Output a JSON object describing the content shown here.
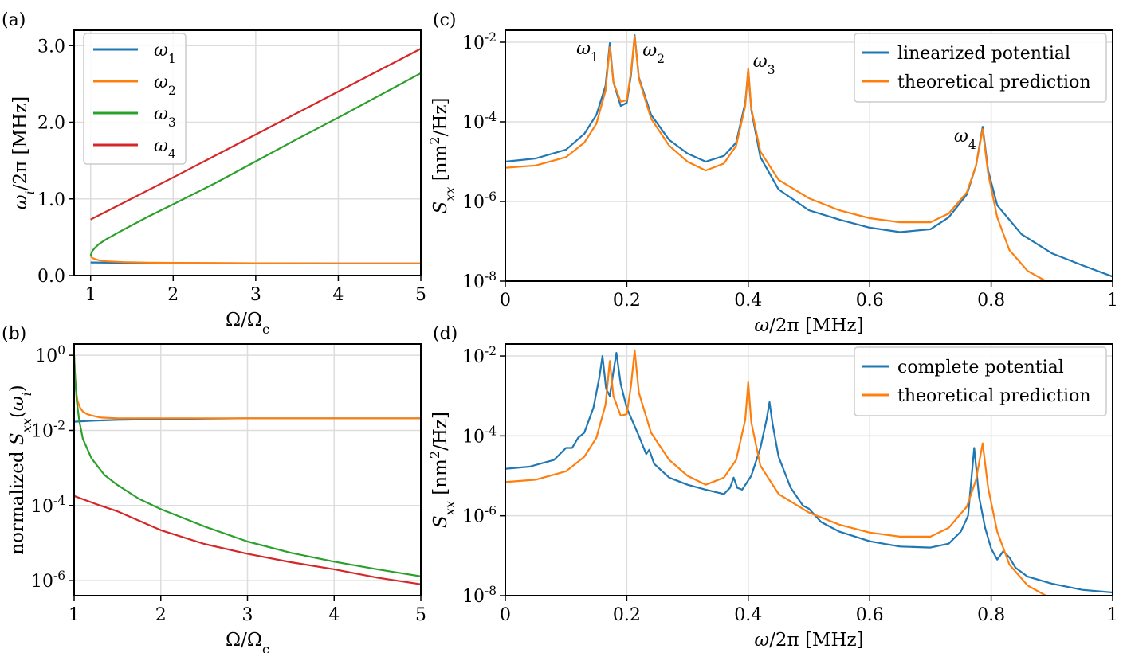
{
  "colors": {
    "blue": "#1f77b4",
    "orange": "#ff7f0e",
    "green": "#2ca02c",
    "red": "#d62728",
    "grid": "#dddddd"
  },
  "chart_data": [
    {
      "panel_label": "(a)",
      "type": "line",
      "xlabel": "Ω/Ω",
      "xlabel_sub": "c",
      "ylabel": "ω",
      "ylabel_sub": "i",
      "ylabel_rest": "/2π [MHz]",
      "xlim": [
        0.8,
        5
      ],
      "ylim": [
        0,
        3.2
      ],
      "xticks": [
        1,
        2,
        3,
        4,
        5
      ],
      "yticks": [
        0.0,
        1.0,
        2.0,
        3.0
      ],
      "xtick_labels": [
        "1",
        "2",
        "3",
        "4",
        "5"
      ],
      "ytick_labels": [
        "0.0",
        "1.0",
        "2.0",
        "3.0"
      ],
      "grid": true,
      "legend": "top-left",
      "series": [
        {
          "name": "ω",
          "name_sub": "1",
          "color": "blue",
          "x": [
            1,
            1.5,
            2,
            3,
            4,
            5
          ],
          "y": [
            0.17,
            0.165,
            0.162,
            0.16,
            0.158,
            0.157
          ]
        },
        {
          "name": "ω",
          "name_sub": "2",
          "color": "orange",
          "x": [
            1,
            1.02,
            1.05,
            1.1,
            1.2,
            1.4,
            1.7,
            2,
            3,
            4,
            5
          ],
          "y": [
            0.26,
            0.23,
            0.215,
            0.2,
            0.185,
            0.175,
            0.168,
            0.165,
            0.16,
            0.158,
            0.157
          ]
        },
        {
          "name": "ω",
          "name_sub": "3",
          "color": "green",
          "x": [
            1,
            1.02,
            1.05,
            1.1,
            1.2,
            1.4,
            1.7,
            2,
            2.5,
            3,
            3.5,
            4,
            4.5,
            5
          ],
          "y": [
            0.26,
            0.32,
            0.36,
            0.41,
            0.48,
            0.6,
            0.77,
            0.93,
            1.2,
            1.49,
            1.78,
            2.06,
            2.35,
            2.64
          ]
        },
        {
          "name": "ω",
          "name_sub": "4",
          "color": "red",
          "x": [
            1,
            2,
            3,
            4,
            5
          ],
          "y": [
            0.73,
            1.28,
            1.84,
            2.4,
            2.96
          ]
        }
      ]
    },
    {
      "panel_label": "(b)",
      "type": "line",
      "xlabel": "Ω/Ω",
      "xlabel_sub": "c",
      "ylabel": "normalized S",
      "ylabel_sub": "xx",
      "ylabel_rest": "(ω",
      "ylabel_sub2": "i",
      "ylabel_end": ")",
      "yscale": "log",
      "xlim": [
        1,
        5
      ],
      "ylim_exp": [
        -6.4,
        0.3
      ],
      "xticks": [
        1,
        2,
        3,
        4,
        5
      ],
      "xtick_labels": [
        "1",
        "2",
        "3",
        "4",
        "5"
      ],
      "yticks_exp": [
        0,
        -2,
        -4,
        -6
      ],
      "ytick_labels": [
        {
          "base": "10",
          "exp": "0"
        },
        {
          "base": "10",
          "exp": "-2"
        },
        {
          "base": "10",
          "exp": "-4"
        },
        {
          "base": "10",
          "exp": "-6"
        }
      ],
      "grid": true,
      "series": [
        {
          "color": "blue",
          "x": [
            1,
            1.2,
            1.5,
            2,
            3,
            4,
            5
          ],
          "y": [
            0.017,
            0.018,
            0.019,
            0.02,
            0.021,
            0.021,
            0.021
          ]
        },
        {
          "color": "orange",
          "x": [
            1,
            1.01,
            1.02,
            1.04,
            1.07,
            1.1,
            1.15,
            1.2,
            1.3,
            1.5,
            2,
            3,
            4,
            5
          ],
          "y": [
            1,
            0.3,
            0.12,
            0.06,
            0.04,
            0.032,
            0.027,
            0.025,
            0.022,
            0.021,
            0.021,
            0.021,
            0.021,
            0.021
          ]
        },
        {
          "color": "green",
          "x": [
            1,
            1.01,
            1.03,
            1.06,
            1.1,
            1.2,
            1.35,
            1.5,
            1.75,
            2,
            2.5,
            3,
            3.5,
            4,
            4.5,
            5
          ],
          "y": [
            1,
            0.3,
            0.06,
            0.018,
            0.006,
            0.0018,
            0.00065,
            0.00035,
            0.00015,
            8e-05,
            2.8e-05,
            1.1e-05,
            5.5e-06,
            3.2e-06,
            2e-06,
            1.3e-06
          ]
        },
        {
          "color": "red",
          "x": [
            1,
            1.25,
            1.5,
            2,
            2.5,
            3,
            3.5,
            4,
            4.5,
            5
          ],
          "y": [
            0.00018,
            0.00011,
            7e-05,
            2.2e-05,
            9.5e-06,
            5.2e-06,
            3.1e-06,
            2e-06,
            1.2e-06,
            8e-07
          ]
        }
      ]
    },
    {
      "panel_label": "(c)",
      "type": "line",
      "xlabel": "ω/2π [MHz]",
      "ylabel": "S",
      "ylabel_sub": "xx",
      "ylabel_rest": " [nm",
      "ylabel_sup": "2",
      "ylabel_end": "/Hz]",
      "yscale": "log",
      "xlim": [
        0,
        1
      ],
      "ylim_exp": [
        -8,
        -1.7
      ],
      "xticks": [
        0,
        0.2,
        0.4,
        0.6,
        0.8,
        1
      ],
      "xtick_labels": [
        "0",
        "0.2",
        "0.4",
        "0.6",
        "0.8",
        "1"
      ],
      "yticks_exp": [
        -2,
        -4,
        -6,
        -8
      ],
      "ytick_labels": [
        {
          "base": "10",
          "exp": "-2"
        },
        {
          "base": "10",
          "exp": "-4"
        },
        {
          "base": "10",
          "exp": "-6"
        },
        {
          "base": "10",
          "exp": "-8"
        }
      ],
      "grid": true,
      "legend": "top-right",
      "peaks": [
        {
          "label": "ω",
          "sub": "1",
          "x": 0.172
        },
        {
          "label": "ω",
          "sub": "2",
          "x": 0.213
        },
        {
          "label": "ω",
          "sub": "3",
          "x": 0.4
        },
        {
          "label": "ω",
          "sub": "4",
          "x": 0.786
        }
      ],
      "series": [
        {
          "name": "linearized potential",
          "color": "blue",
          "x": [
            0,
            0.05,
            0.1,
            0.13,
            0.15,
            0.165,
            0.172,
            0.178,
            0.19,
            0.2,
            0.207,
            0.213,
            0.22,
            0.24,
            0.27,
            0.3,
            0.33,
            0.36,
            0.38,
            0.395,
            0.4,
            0.405,
            0.42,
            0.45,
            0.5,
            0.55,
            0.6,
            0.65,
            0.7,
            0.73,
            0.76,
            0.775,
            0.786,
            0.795,
            0.81,
            0.85,
            0.9,
            0.95,
            1
          ],
          "y": [
            1e-05,
            1.2e-05,
            2e-05,
            5e-05,
            0.00015,
            0.0008,
            0.0095,
            0.001,
            0.00025,
            0.0003,
            0.0015,
            0.015,
            0.0013,
            0.00015,
            3.5e-05,
            1.6e-05,
            1e-05,
            1.4e-05,
            3e-05,
            0.0003,
            0.002,
            0.0002,
            1.3e-05,
            2e-06,
            6e-07,
            3.5e-07,
            2.2e-07,
            1.7e-07,
            2e-07,
            4e-07,
            1.5e-06,
            8e-06,
            7.5e-05,
            6e-06,
            8e-07,
            1.5e-07,
            5e-08,
            2.5e-08,
            1.3e-08
          ]
        },
        {
          "name": "theoretical prediction",
          "color": "orange",
          "x": [
            0,
            0.05,
            0.1,
            0.13,
            0.15,
            0.165,
            0.172,
            0.178,
            0.19,
            0.2,
            0.207,
            0.213,
            0.22,
            0.24,
            0.27,
            0.3,
            0.33,
            0.36,
            0.38,
            0.395,
            0.4,
            0.405,
            0.42,
            0.45,
            0.5,
            0.55,
            0.6,
            0.65,
            0.7,
            0.73,
            0.76,
            0.775,
            0.786,
            0.795,
            0.81,
            0.83,
            0.86,
            0.89
          ],
          "y": [
            7e-06,
            8e-06,
            1.3e-05,
            3e-05,
            9e-05,
            0.0006,
            0.0075,
            0.001,
            0.00032,
            0.00035,
            0.0018,
            0.014,
            0.0012,
            0.00012,
            2.5e-05,
            1e-05,
            6e-06,
            9e-06,
            2.5e-05,
            0.00025,
            0.0022,
            0.00022,
            1.8e-05,
            3.5e-06,
            1.2e-06,
            6e-07,
            3.8e-07,
            3e-07,
            3e-07,
            5e-07,
            1.7e-06,
            8e-06,
            6.5e-05,
            5e-06,
            4e-07,
            6e-08,
            1.8e-08,
            1e-08
          ]
        }
      ]
    },
    {
      "panel_label": "(d)",
      "type": "line",
      "xlabel": "ω/2π [MHz]",
      "ylabel": "S",
      "ylabel_sub": "xx",
      "ylabel_rest": " [nm",
      "ylabel_sup": "2",
      "ylabel_end": "/Hz]",
      "yscale": "log",
      "xlim": [
        0,
        1
      ],
      "ylim_exp": [
        -8,
        -1.7
      ],
      "xticks": [
        0,
        0.2,
        0.4,
        0.6,
        0.8,
        1
      ],
      "xtick_labels": [
        "0",
        "0.2",
        "0.4",
        "0.6",
        "0.8",
        "1"
      ],
      "yticks_exp": [
        -2,
        -4,
        -6,
        -8
      ],
      "ytick_labels": [
        {
          "base": "10",
          "exp": "-2"
        },
        {
          "base": "10",
          "exp": "-4"
        },
        {
          "base": "10",
          "exp": "-6"
        },
        {
          "base": "10",
          "exp": "-8"
        }
      ],
      "grid": true,
      "legend": "top-right",
      "series": [
        {
          "name": "complete potential",
          "color": "blue",
          "x": [
            0,
            0.04,
            0.08,
            0.1,
            0.11,
            0.12,
            0.13,
            0.145,
            0.155,
            0.16,
            0.166,
            0.172,
            0.178,
            0.183,
            0.19,
            0.2,
            0.22,
            0.232,
            0.237,
            0.245,
            0.27,
            0.3,
            0.33,
            0.36,
            0.37,
            0.376,
            0.382,
            0.39,
            0.405,
            0.42,
            0.43,
            0.435,
            0.44,
            0.45,
            0.47,
            0.49,
            0.5,
            0.52,
            0.55,
            0.6,
            0.65,
            0.7,
            0.73,
            0.75,
            0.762,
            0.772,
            0.78,
            0.79,
            0.8,
            0.81,
            0.82,
            0.83,
            0.84,
            0.86,
            0.9,
            0.95,
            1
          ],
          "y": [
            1.5e-05,
            1.7e-05,
            2.5e-05,
            5e-05,
            5e-05,
            9e-05,
            0.00012,
            0.0005,
            0.003,
            0.01,
            0.0015,
            0.001,
            0.004,
            0.012,
            0.002,
            0.0005,
            0.0001,
            3.5e-05,
            4.5e-05,
            2e-05,
            9e-06,
            6e-06,
            4.5e-06,
            3.5e-06,
            5e-06,
            9e-06,
            5e-06,
            4.5e-06,
            1e-05,
            5e-05,
            0.00025,
            0.0007,
            0.0002,
            3e-05,
            5e-06,
            1.8e-06,
            1.5e-06,
            7e-07,
            4e-07,
            2.3e-07,
            1.7e-07,
            1.6e-07,
            2e-07,
            4e-07,
            1e-06,
            5e-05,
            3e-06,
            5e-07,
            1.5e-07,
            8e-08,
            1.3e-07,
            9e-08,
            5e-08,
            3e-08,
            2e-08,
            1.4e-08,
            1.2e-08
          ]
        },
        {
          "name": "theoretical prediction",
          "color": "orange",
          "x": [
            0,
            0.05,
            0.1,
            0.13,
            0.15,
            0.165,
            0.172,
            0.178,
            0.19,
            0.2,
            0.207,
            0.213,
            0.22,
            0.24,
            0.27,
            0.3,
            0.33,
            0.36,
            0.38,
            0.395,
            0.4,
            0.405,
            0.42,
            0.45,
            0.5,
            0.55,
            0.6,
            0.65,
            0.7,
            0.73,
            0.76,
            0.775,
            0.786,
            0.795,
            0.81,
            0.83,
            0.86,
            0.89
          ],
          "y": [
            7e-06,
            8e-06,
            1.3e-05,
            3e-05,
            9e-05,
            0.0006,
            0.0075,
            0.001,
            0.00032,
            0.00035,
            0.0018,
            0.014,
            0.0012,
            0.00012,
            2.5e-05,
            1e-05,
            6e-06,
            9e-06,
            2.5e-05,
            0.00025,
            0.0022,
            0.00022,
            1.8e-05,
            3.5e-06,
            1.2e-06,
            6e-07,
            3.8e-07,
            3e-07,
            3e-07,
            5e-07,
            1.7e-06,
            8e-06,
            6.5e-05,
            5e-06,
            4e-07,
            6e-08,
            1.8e-08,
            1e-08
          ]
        }
      ]
    }
  ]
}
